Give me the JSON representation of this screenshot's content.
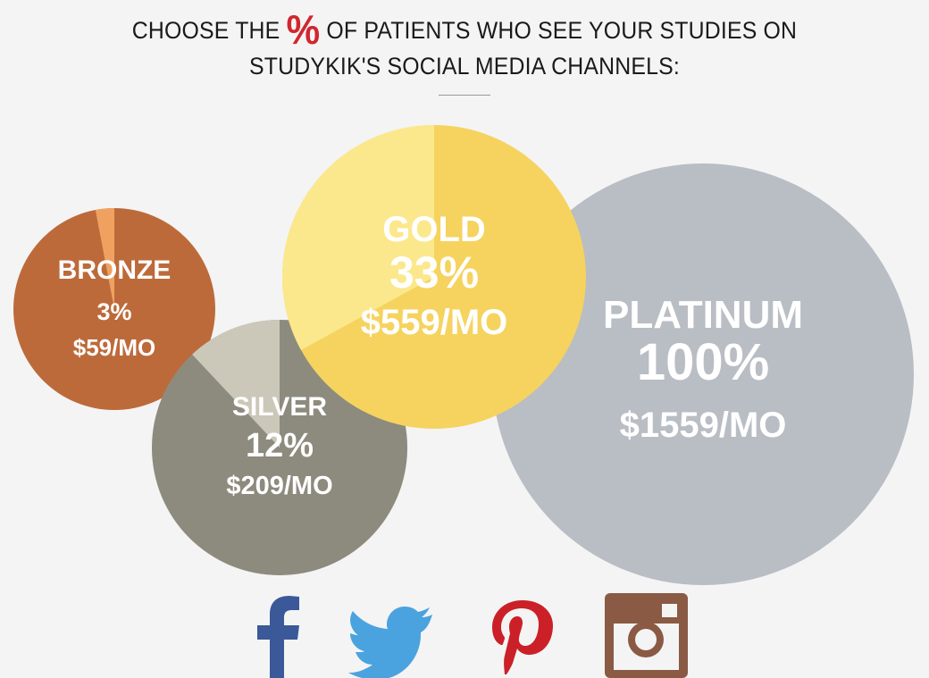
{
  "header": {
    "line1_before": "CHOOSE THE",
    "line1_symbol": "%",
    "line1_after": "OF PATIENTS WHO SEE YOUR STUDIES ON",
    "line2": "STUDYKIK'S SOCIAL MEDIA CHANNELS:"
  },
  "chart_data": {
    "type": "pie",
    "title": "",
    "unit": "%",
    "series": [
      {
        "name": "BRONZE",
        "percent_label": "3%",
        "price": "$59/MO",
        "value": 3,
        "color": "#bd6a3b",
        "highlight": "#f0a160"
      },
      {
        "name": "SILVER",
        "percent_label": "12%",
        "price": "$209/MO",
        "value": 12,
        "color": "#8d8b7e",
        "highlight": "#cbc8b9"
      },
      {
        "name": "GOLD",
        "percent_label": "33%",
        "price": "$559/MO",
        "value": 33,
        "color": "#f5d35e",
        "highlight": "#fbe88c"
      },
      {
        "name": "PLATINUM",
        "percent_label": "100%",
        "price": "$1559/MO",
        "value": 100,
        "color": "#b9bdc4",
        "highlight": "#b9bdc4"
      }
    ]
  },
  "social_icons": [
    {
      "icon": "facebook-icon",
      "color": "#3b5998"
    },
    {
      "icon": "twitter-icon",
      "color": "#4aa3df"
    },
    {
      "icon": "pinterest-icon",
      "color": "#cb2027"
    },
    {
      "icon": "instagram-icon",
      "color": "#8a5a44"
    }
  ]
}
